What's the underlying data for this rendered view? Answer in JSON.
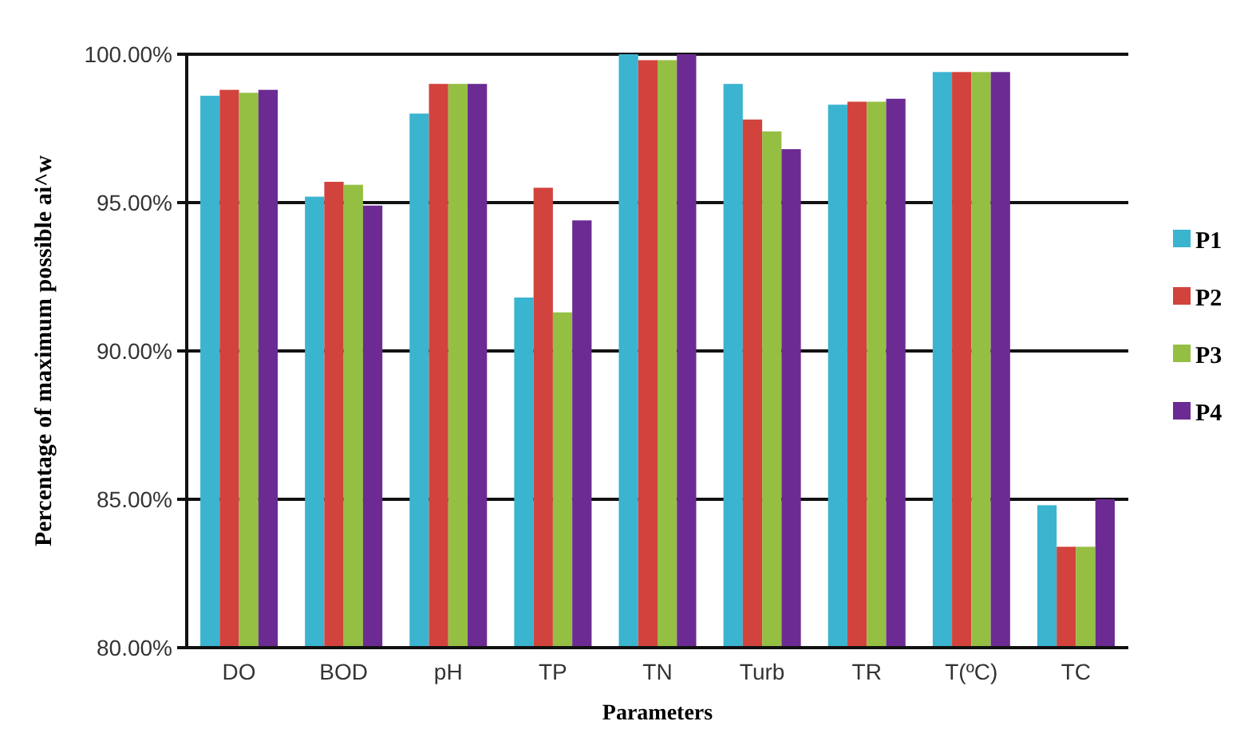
{
  "chart_data": {
    "type": "bar",
    "xlabel": "Parameters",
    "ylabel": "Percentage of maximum possible ai^w",
    "categories": [
      "DO",
      "BOD",
      "pH",
      "TP",
      "TN",
      "Turb",
      "TR",
      "T(ºC)",
      "TC"
    ],
    "series": [
      {
        "name": "P1",
        "color": "#3bb4d0",
        "values": [
          98.6,
          95.2,
          98.0,
          91.8,
          100,
          99.0,
          98.3,
          99.4,
          84.8
        ]
      },
      {
        "name": "P2",
        "color": "#d2433d",
        "values": [
          98.8,
          95.7,
          99.0,
          95.5,
          99.8,
          97.8,
          98.4,
          99.4,
          83.4
        ]
      },
      {
        "name": "P3",
        "color": "#95bf43",
        "values": [
          98.7,
          95.6,
          99.0,
          91.3,
          99.8,
          97.4,
          98.4,
          99.4,
          83.4
        ]
      },
      {
        "name": "P4",
        "color": "#6c2b93",
        "values": [
          98.8,
          94.9,
          99.0,
          94.4,
          100,
          96.8,
          98.5,
          99.4,
          85.0
        ]
      }
    ],
    "ylim": [
      80,
      100
    ],
    "yticks": [
      {
        "value": 80,
        "label": "80.00%"
      },
      {
        "value": 85,
        "label": "85.00%"
      },
      {
        "value": 90,
        "label": "90.00%"
      },
      {
        "value": 95,
        "label": "95.00%"
      },
      {
        "value": 100,
        "label": "100.00%"
      }
    ],
    "grid": "y",
    "legend": "right"
  }
}
